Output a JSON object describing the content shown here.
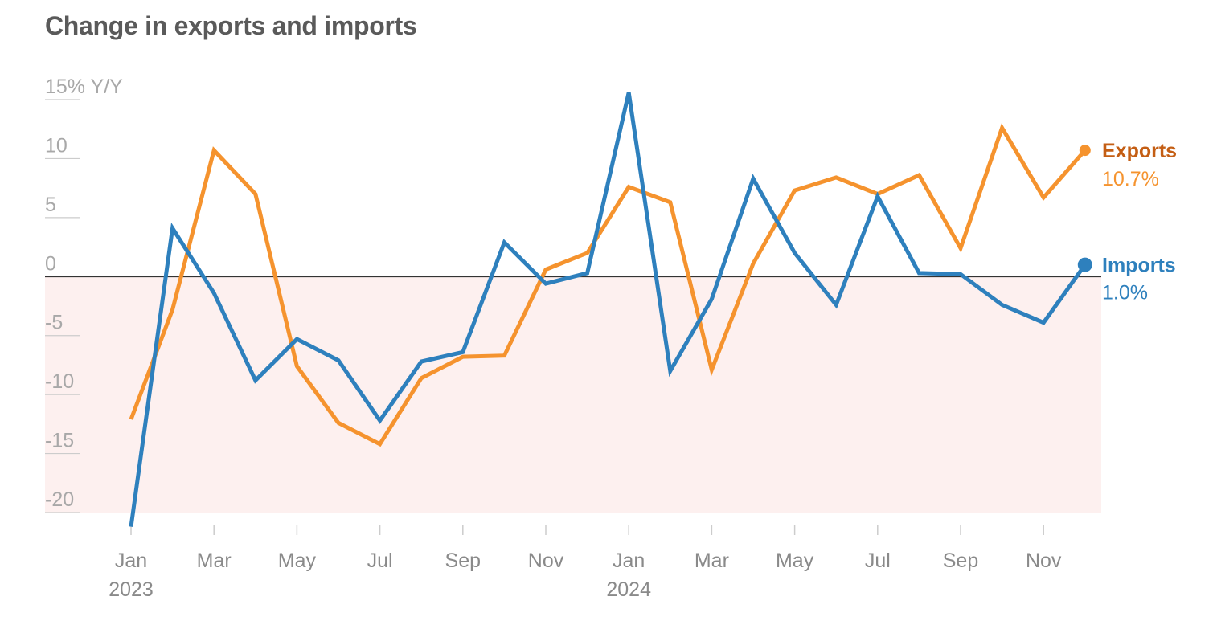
{
  "title": "Change in exports and imports",
  "colors": {
    "exports": "#f5932e",
    "exports_label": "#c45e14",
    "imports": "#2e80bd",
    "negative_shading": "#fdf0ef",
    "zero_line": "#333333",
    "grid": "#cccccc"
  },
  "chart_data": {
    "type": "line",
    "title": "Change in exports and imports",
    "ylabel": "Y/Y",
    "ylim": [
      -20,
      15
    ],
    "yticks": [
      {
        "value": 15,
        "label": "15% Y/Y"
      },
      {
        "value": 10,
        "label": "10"
      },
      {
        "value": 5,
        "label": "5"
      },
      {
        "value": 0,
        "label": "0"
      },
      {
        "value": -5,
        "label": "-5"
      },
      {
        "value": -10,
        "label": "-10"
      },
      {
        "value": -15,
        "label": "-15"
      },
      {
        "value": -20,
        "label": "-20"
      }
    ],
    "x": [
      "2023-01",
      "2023-02",
      "2023-03",
      "2023-04",
      "2023-05",
      "2023-06",
      "2023-07",
      "2023-08",
      "2023-09",
      "2023-10",
      "2023-11",
      "2023-12",
      "2024-01",
      "2024-02",
      "2024-03",
      "2024-04",
      "2024-05",
      "2024-06",
      "2024-07",
      "2024-08",
      "2024-09",
      "2024-10",
      "2024-11",
      "2024-12"
    ],
    "xtick_labels": [
      {
        "month": "2023-01",
        "label": "Jan",
        "year": "2023"
      },
      {
        "month": "2023-03",
        "label": "Mar"
      },
      {
        "month": "2023-05",
        "label": "May"
      },
      {
        "month": "2023-07",
        "label": "Jul"
      },
      {
        "month": "2023-09",
        "label": "Sep"
      },
      {
        "month": "2023-11",
        "label": "Nov"
      },
      {
        "month": "2024-01",
        "label": "Jan",
        "year": "2024"
      },
      {
        "month": "2024-03",
        "label": "Mar"
      },
      {
        "month": "2024-05",
        "label": "May"
      },
      {
        "month": "2024-07",
        "label": "Jul"
      },
      {
        "month": "2024-09",
        "label": "Sep"
      },
      {
        "month": "2024-11",
        "label": "Nov"
      }
    ],
    "series": [
      {
        "name": "Exports",
        "values": [
          -12.1,
          -2.8,
          10.7,
          7.0,
          -7.6,
          -12.4,
          -14.2,
          -8.6,
          -6.8,
          -6.7,
          0.6,
          2.0,
          7.6,
          6.3,
          -7.9,
          1.1,
          7.3,
          8.4,
          7.0,
          8.6,
          2.4,
          12.6,
          6.7,
          10.7
        ],
        "end_label": "10.7%"
      },
      {
        "name": "Imports",
        "values": [
          -21.2,
          4.1,
          -1.4,
          -8.8,
          -5.3,
          -7.1,
          -12.2,
          -7.2,
          -6.4,
          2.9,
          -0.6,
          0.3,
          15.6,
          -8.0,
          -1.9,
          8.3,
          2.0,
          -2.4,
          6.8,
          0.3,
          0.2,
          -2.4,
          -3.9,
          1.0
        ],
        "end_label": "1.0%"
      }
    ],
    "shading": "below zero",
    "grid": false,
    "legend": "direct labels at line ends, right"
  }
}
